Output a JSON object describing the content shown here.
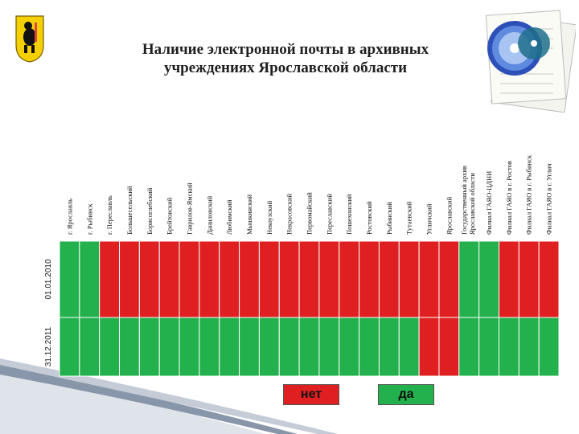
{
  "title": {
    "line1": "Наличие электронной почты в архивных",
    "line2": "учреждениях Ярославской области"
  },
  "colors": {
    "yes": "#22b14c",
    "no": "#e02020",
    "grid": "#ffffff"
  },
  "legend": {
    "no_label": "нет",
    "yes_label": "да"
  },
  "chart_data": {
    "type": "heatmap",
    "title": "Наличие электронной почты в архивных учреждениях Ярославской области",
    "rows": [
      "01.01.2010",
      "31.12.2011"
    ],
    "columns": [
      "г. Ярославль",
      "г. Рыбинск",
      "г. Переславль",
      "Большесельский",
      "Борисоглебский",
      "Брейтовский",
      "Гаврилов-Ямский",
      "Даниловский",
      "Любимский",
      "Мышкинский",
      "Некоузский",
      "Некрасовский",
      "Первомайский",
      "Переславский",
      "Пошехонский",
      "Ростовский",
      "Рыбинский",
      "Тутаевский",
      "Угличский",
      "Ярославский",
      "Государственный архив Ярославской области",
      "Филиал ГАЯО-ЦДНИ",
      "Филиал ГАЯО в г. Ростов",
      "Филиал ГАЯО в г. Рыбинск",
      "Филиал ГАЯО в г. Углич"
    ],
    "values": {
      "01.01.2010": [
        "да",
        "да",
        "нет",
        "нет",
        "нет",
        "нет",
        "нет",
        "нет",
        "нет",
        "нет",
        "нет",
        "нет",
        "нет",
        "нет",
        "нет",
        "нет",
        "нет",
        "нет",
        "нет",
        "нет",
        "да",
        "да",
        "нет",
        "нет",
        "нет"
      ],
      "31.12.2011": [
        "да",
        "да",
        "да",
        "да",
        "да",
        "да",
        "да",
        "да",
        "да",
        "да",
        "да",
        "да",
        "да",
        "да",
        "да",
        "да",
        "да",
        "да",
        "нет",
        "нет",
        "да",
        "да",
        "да",
        "да",
        "да"
      ]
    },
    "legend": [
      "нет",
      "да"
    ],
    "legend_placement": "bottom-center"
  }
}
